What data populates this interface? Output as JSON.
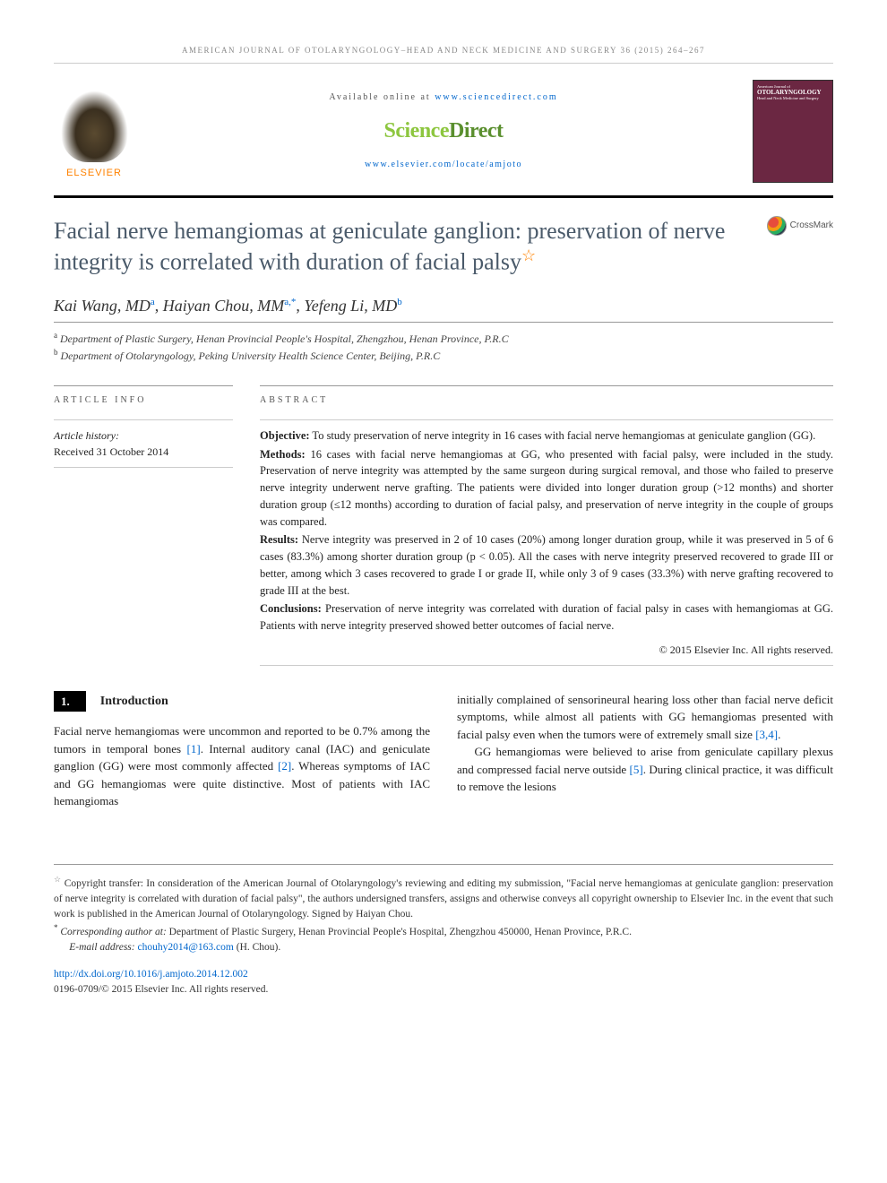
{
  "running_head": "AMERICAN JOURNAL OF OTOLARYNGOLOGY–HEAD AND NECK MEDICINE AND SURGERY 36 (2015) 264–267",
  "header": {
    "available_prefix": "Available online at ",
    "available_url": "www.sciencedirect.com",
    "sd_part1": "Science",
    "sd_part2": "Direct",
    "journal_url": "www.elsevier.com/locate/amjoto",
    "elsevier_text": "ELSEVIER",
    "cover_line1": "American Journal of",
    "cover_line2": "OTOLARYNGOLOGY",
    "cover_line3": "Head and Neck Medicine and Surgery"
  },
  "title": "Facial nerve hemangiomas at geniculate ganglion: preservation of nerve integrity is correlated with duration of facial palsy",
  "crossmark_label": "CrossMark",
  "authors": {
    "a1_name": "Kai Wang, MD",
    "a1_aff": "a",
    "a2_name": "Haiyan Chou, MM",
    "a2_aff": "a,",
    "a2_corr": "*",
    "a3_name": "Yefeng Li, MD",
    "a3_aff": "b"
  },
  "affiliations": {
    "a_mark": "a",
    "a_text": " Department of Plastic Surgery, Henan Provincial People's Hospital, Zhengzhou, Henan Province, P.R.C",
    "b_mark": "b",
    "b_text": " Department of Otolaryngology, Peking University Health Science Center, Beijing, P.R.C"
  },
  "info": {
    "head": "ARTICLE INFO",
    "history_label": "Article history:",
    "received": "Received 31 October 2014"
  },
  "abstract": {
    "head": "ABSTRACT",
    "objective_label": "Objective:",
    "objective_text": " To study preservation of nerve integrity in 16 cases with facial nerve hemangiomas at geniculate ganglion (GG).",
    "methods_label": "Methods:",
    "methods_text": " 16 cases with facial nerve hemangiomas at GG, who presented with facial palsy, were included in the study. Preservation of nerve integrity was attempted by the same surgeon during surgical removal, and those who failed to preserve nerve integrity underwent nerve grafting. The patients were divided into longer duration group (>12 months) and shorter duration group (≤12 months) according to duration of facial palsy, and preservation of nerve integrity in the couple of groups was compared.",
    "results_label": "Results:",
    "results_text": " Nerve integrity was preserved in 2 of 10 cases (20%) among longer duration group, while it was preserved in 5 of 6 cases (83.3%) among shorter duration group (p < 0.05). All the cases with nerve integrity preserved recovered to grade III or better, among which 3 cases recovered to grade I or grade II, while only 3 of 9 cases (33.3%) with nerve grafting recovered to grade III at the best.",
    "conclusions_label": "Conclusions:",
    "conclusions_text": " Preservation of nerve integrity was correlated with duration of facial palsy in cases with hemangiomas at GG. Patients with nerve integrity preserved showed better outcomes of facial nerve.",
    "copyright": "© 2015 Elsevier Inc. All rights reserved."
  },
  "body": {
    "sec_num": "1.",
    "sec_title": "Introduction",
    "col1_p1a": "Facial nerve hemangiomas were uncommon and reported to be 0.7% among the tumors in temporal bones ",
    "ref1": "[1]",
    "col1_p1b": ". Internal auditory canal (IAC) and geniculate ganglion (GG) were most commonly affected ",
    "ref2": "[2]",
    "col1_p1c": ". Whereas symptoms of IAC and GG hemangiomas were quite distinctive. Most of patients with IAC hemangiomas",
    "col2_p1a": "initially complained of sensorineural hearing loss other than facial nerve deficit symptoms, while almost all patients with GG hemangiomas presented with facial palsy even when the tumors were of extremely small size ",
    "ref34": "[3,4]",
    "col2_p1b": ".",
    "col2_p2a": "GG hemangiomas were believed to arise from geniculate capillary plexus and compressed facial nerve outside ",
    "ref5": "[5]",
    "col2_p2b": ". During clinical practice, it was difficult to remove the lesions"
  },
  "footnotes": {
    "fn1_mark": "☆",
    "fn1_text": " Copyright transfer: In consideration of the American Journal of Otolaryngology's reviewing and editing my submission, \"Facial nerve hemangiomas at geniculate ganglion: preservation of nerve integrity is correlated with duration of facial palsy\", the authors undersigned transfers, assigns and otherwise conveys all copyright ownership to Elsevier Inc. in the event that such work is published in the American Journal of Otolaryngology. Signed by Haiyan Chou.",
    "fn2_mark": "*",
    "fn2_label": " Corresponding author at:",
    "fn2_text": " Department of Plastic Surgery, Henan Provincial People's Hospital, Zhengzhou 450000, Henan Province, P.R.C.",
    "email_label": "E-mail address: ",
    "email": "chouhy2014@163.com",
    "email_suffix": " (H. Chou).",
    "doi": "http://dx.doi.org/10.1016/j.amjoto.2014.12.002",
    "issn_line": "0196-0709/© 2015 Elsevier Inc. All rights reserved."
  }
}
